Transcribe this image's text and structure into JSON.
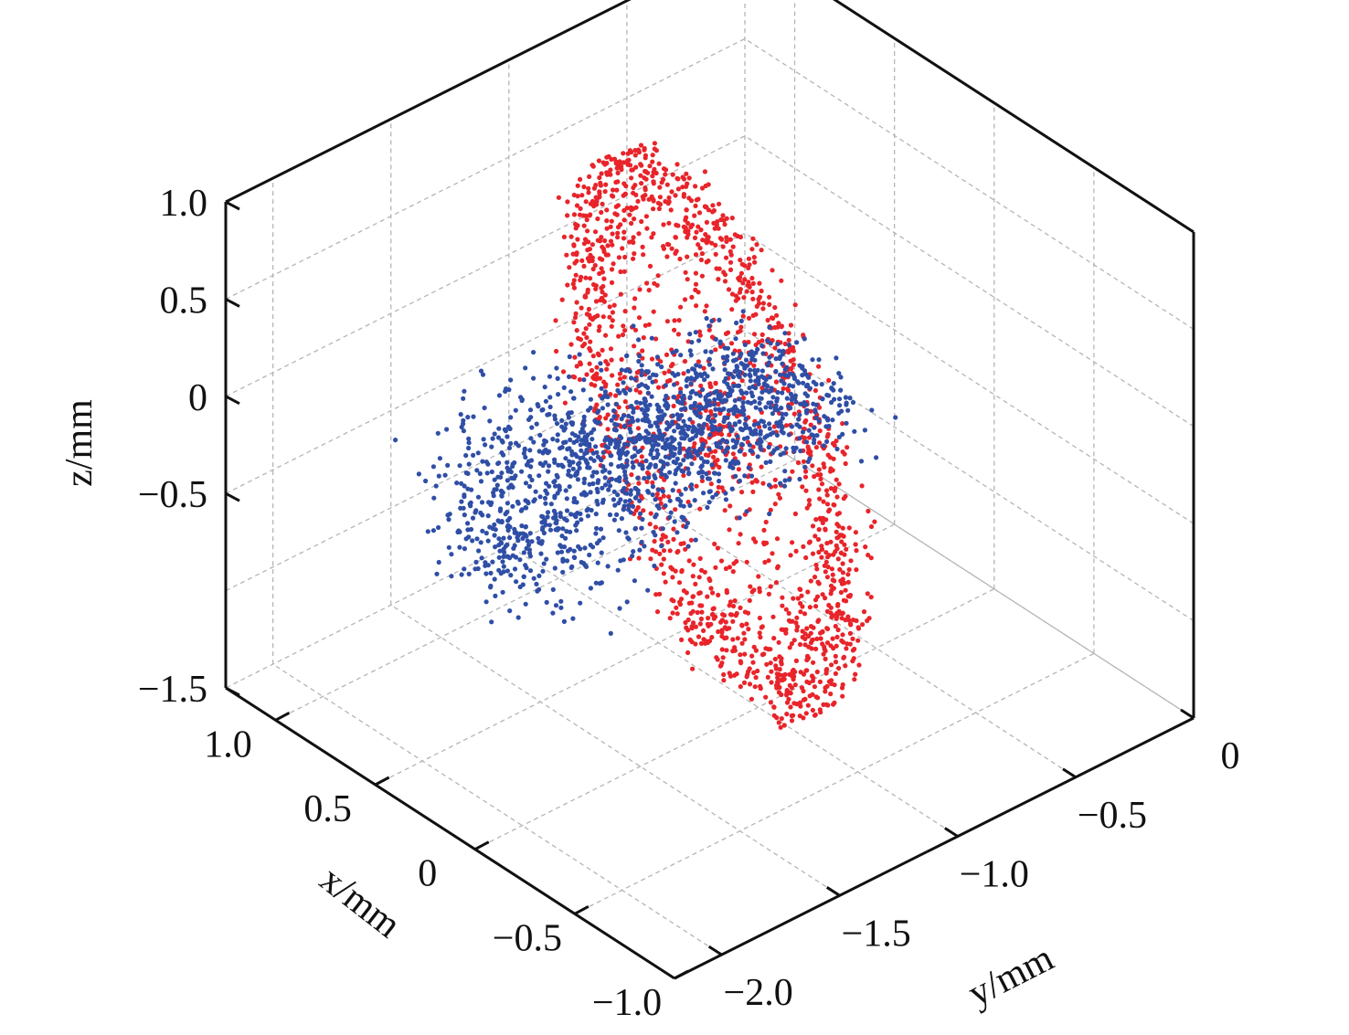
{
  "chart_data": {
    "type": "scatter",
    "projection": "3d",
    "title": "",
    "grid": true,
    "axes": {
      "x": {
        "label": "x/mm",
        "range": [
          -1.0,
          1.25
        ],
        "ticks": [
          1.0,
          0.5,
          0,
          -0.5,
          -1.0
        ],
        "tick_labels": [
          "1.0",
          "0.5",
          "0",
          "−0.5",
          "−1.0"
        ]
      },
      "y": {
        "label": "y/mm",
        "range": [
          -2.2,
          0
        ],
        "ticks": [
          -2.0,
          -1.5,
          -1.0,
          -0.5,
          0
        ],
        "tick_labels": [
          "−2.0",
          "−1.5",
          "−1.0",
          "−0.5",
          "0"
        ]
      },
      "z": {
        "label": "z/mm",
        "range": [
          -1.5,
          1.0
        ],
        "ticks": [
          1.0,
          0.5,
          0,
          -0.5,
          -1.5
        ],
        "tick_labels": [
          "1.0",
          "0.5",
          "0",
          "−0.5",
          "−1.5"
        ]
      }
    },
    "series": [
      {
        "color": "#e8242a",
        "shape": "ring (torus-like sheet of droplets)",
        "center": {
          "y": -1.1,
          "z": -0.1
        },
        "ring_outer_radius_z": 1.15,
        "ring_inner_radius_z": 0.75,
        "count": 1700
      },
      {
        "color": "#2f4ea6",
        "shape": "jet core cloud along y",
        "y_range": [
          -2.15,
          -0.75
        ],
        "z_range": [
          -0.4,
          0.65
        ],
        "count": 1600
      }
    ]
  }
}
